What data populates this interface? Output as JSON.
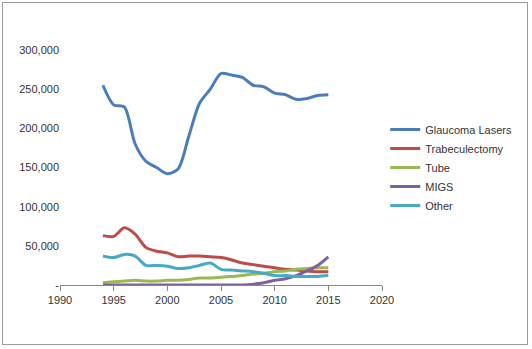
{
  "chart_data": {
    "type": "line",
    "line_style": "smooth",
    "x": [
      1994,
      1995,
      1996,
      1997,
      1998,
      1999,
      2000,
      2001,
      2002,
      2003,
      2004,
      2005,
      2006,
      2007,
      2008,
      2009,
      2010,
      2011,
      2012,
      2013,
      2014,
      2015
    ],
    "series": [
      {
        "name": "Glaucoma Lasers",
        "color": "#4a7ebb",
        "values": [
          255000,
          230000,
          227000,
          180000,
          158000,
          150000,
          142000,
          148000,
          190000,
          232000,
          250000,
          270000,
          268000,
          265000,
          255000,
          253000,
          245000,
          243000,
          237000,
          238000,
          242000,
          243000
        ]
      },
      {
        "name": "Trabeculectomy",
        "color": "#be4b48",
        "values": [
          63000,
          62000,
          73000,
          65000,
          48000,
          43000,
          41000,
          36000,
          37000,
          37000,
          36000,
          35000,
          32000,
          28000,
          26000,
          24000,
          22000,
          20000,
          19000,
          18000,
          17000,
          17000
        ]
      },
      {
        "name": "Tube",
        "color": "#98b954",
        "values": [
          3000,
          4000,
          5000,
          6000,
          5000,
          5000,
          6000,
          6000,
          7000,
          9000,
          9000,
          10000,
          11000,
          12000,
          14000,
          15000,
          17000,
          18000,
          20000,
          21000,
          22000,
          22000
        ]
      },
      {
        "name": "MIGS",
        "color": "#7d60a0",
        "values": [
          0,
          0,
          0,
          0,
          0,
          0,
          0,
          0,
          0,
          0,
          0,
          0,
          0,
          0,
          1000,
          3000,
          6000,
          8000,
          12000,
          18000,
          25000,
          36000
        ]
      },
      {
        "name": "Other",
        "color": "#46aac5",
        "values": [
          37000,
          35000,
          39000,
          37000,
          25000,
          25000,
          24000,
          21000,
          22000,
          25000,
          28000,
          20000,
          19000,
          18000,
          17000,
          15000,
          12000,
          12000,
          11000,
          11000,
          11000,
          12000
        ]
      }
    ],
    "xlim": [
      1990,
      2020
    ],
    "xticks": [
      1990,
      1995,
      2000,
      2005,
      2010,
      2015,
      2020
    ],
    "ylim": [
      0,
      300000
    ],
    "yticks": [
      {
        "value": 0,
        "label": "-"
      },
      {
        "value": 50000,
        "label": "50,000"
      },
      {
        "value": 100000,
        "label": "100,000"
      },
      {
        "value": 150000,
        "label": "150,000"
      },
      {
        "value": 200000,
        "label": "200,000"
      },
      {
        "value": 250000,
        "label": "250,000"
      },
      {
        "value": 300000,
        "label": "300,000"
      }
    ],
    "grid": false,
    "legend": "right"
  }
}
